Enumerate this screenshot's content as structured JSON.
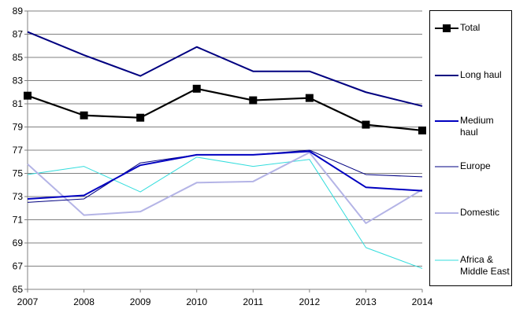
{
  "chart_data": {
    "type": "line",
    "title": "",
    "xlabel": "",
    "ylabel": "",
    "x": [
      "2007",
      "2008",
      "2009",
      "2010",
      "2011",
      "2012",
      "2013",
      "2014"
    ],
    "ylim": [
      65,
      89
    ],
    "yticks": [
      "65",
      "67",
      "69",
      "71",
      "73",
      "75",
      "77",
      "79",
      "81",
      "83",
      "85",
      "87",
      "89"
    ],
    "grid": "horizontal",
    "legend_position": "right",
    "series": [
      {
        "name": "Total",
        "values": [
          81.7,
          80.0,
          79.8,
          82.3,
          81.3,
          81.5,
          79.2,
          78.7
        ],
        "color": "#000000",
        "marker": "square",
        "width": 2.2
      },
      {
        "name": "Long haul",
        "values": [
          87.2,
          85.2,
          83.4,
          85.9,
          83.8,
          83.8,
          82.0,
          80.8
        ],
        "color": "#000080",
        "marker": "none",
        "width": 2
      },
      {
        "name": "Medium haul",
        "values": [
          72.8,
          73.1,
          75.7,
          76.6,
          76.6,
          76.9,
          73.8,
          73.5
        ],
        "color": "#0000c0",
        "marker": "none",
        "width": 2
      },
      {
        "name": "Europe",
        "values": [
          72.5,
          72.8,
          75.9,
          76.6,
          76.6,
          77.0,
          74.9,
          74.7
        ],
        "color": "#000080",
        "marker": "none",
        "width": 1
      },
      {
        "name": "Domestic",
        "values": [
          75.8,
          71.4,
          71.7,
          74.2,
          74.3,
          76.8,
          70.7,
          73.6
        ],
        "color": "#b4b4e6",
        "marker": "none",
        "width": 2
      },
      {
        "name": "Africa & Middle East",
        "values": [
          74.9,
          75.6,
          73.4,
          76.4,
          75.6,
          76.2,
          68.6,
          66.8
        ],
        "color": "#33dddd",
        "marker": "none",
        "width": 1
      }
    ]
  },
  "legend": {
    "items": [
      {
        "label": "Total"
      },
      {
        "label": "Long haul"
      },
      {
        "label": "Medium haul"
      },
      {
        "label": "Europe"
      },
      {
        "label": "Domestic"
      },
      {
        "label": "Africa & Middle East"
      }
    ]
  }
}
